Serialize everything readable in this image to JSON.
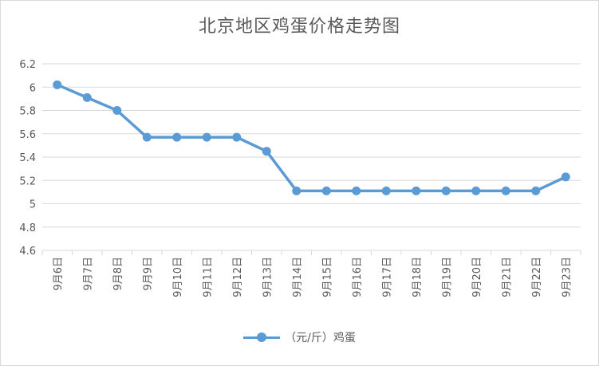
{
  "chart_data": {
    "type": "line",
    "title": "北京地区鸡蛋价格走势图",
    "categories": [
      "9月6日",
      "9月7日",
      "9月8日",
      "9月9日",
      "9月10日",
      "9月11日",
      "9月12日",
      "9月13日",
      "9月14日",
      "9月15日",
      "9月16日",
      "9月17日",
      "9月18日",
      "9月19日",
      "9月20日",
      "9月21日",
      "9月22日",
      "9月23日"
    ],
    "series": [
      {
        "name": "（元/斤）鸡蛋",
        "values": [
          6.02,
          5.91,
          5.8,
          5.57,
          5.57,
          5.57,
          5.57,
          5.45,
          5.11,
          5.11,
          5.11,
          5.11,
          5.11,
          5.11,
          5.11,
          5.11,
          5.11,
          5.23
        ]
      }
    ],
    "ylim": [
      4.6,
      6.2
    ],
    "yticks": [
      "6.2",
      "6",
      "5.8",
      "5.6",
      "5.4",
      "5.2",
      "5",
      "4.8",
      "4.6"
    ],
    "xlabel": "",
    "ylabel": "",
    "grid": true,
    "legend_position": "bottom",
    "line_color": "#5b9bd5"
  }
}
